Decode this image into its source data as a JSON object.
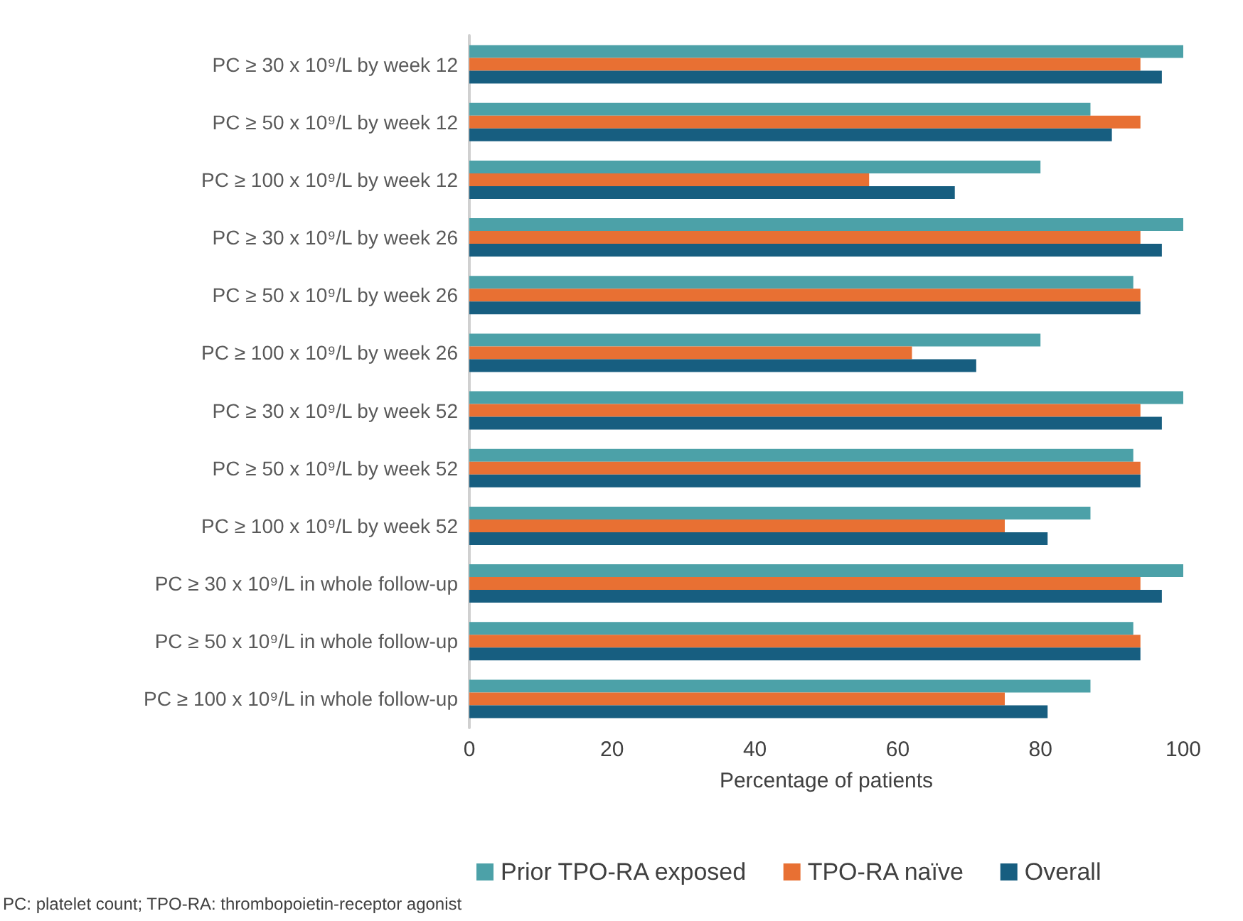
{
  "chart_data": {
    "type": "bar",
    "orientation": "horizontal",
    "xlabel": "Percentage of patients",
    "categories": [
      "PC ≥ 30 x 10⁹/L by week 12",
      "PC ≥ 50 x 10⁹/L by week 12",
      "PC ≥ 100 x 10⁹/L by week 12",
      "PC ≥ 30 x 10⁹/L by week 26",
      "PC ≥ 50 x 10⁹/L by week 26",
      "PC ≥ 100 x 10⁹/L by week 26",
      "PC ≥ 30 x 10⁹/L by week 52",
      "PC ≥ 50 x 10⁹/L by week 52",
      "PC ≥ 100 x 10⁹/L by week 52",
      "PC ≥ 30 x 10⁹/L in whole follow-up",
      "PC ≥ 50 x 10⁹/L in whole follow-up",
      "PC ≥ 100 x 10⁹/L in whole follow-up"
    ],
    "series": [
      {
        "name": "Prior TPO-RA exposed",
        "color": "#4ca1a8",
        "values": [
          100,
          87,
          80,
          100,
          93,
          80,
          100,
          93,
          87,
          100,
          93,
          87
        ]
      },
      {
        "name": "TPO-RA naïve",
        "color": "#e87033",
        "values": [
          94,
          94,
          56,
          94,
          94,
          62,
          94,
          94,
          75,
          94,
          94,
          75
        ]
      },
      {
        "name": "Overall",
        "color": "#175e80",
        "values": [
          97,
          90,
          68,
          97,
          94,
          71,
          97,
          94,
          81,
          97,
          94,
          81
        ]
      }
    ],
    "xlim": [
      0,
      100
    ],
    "xticks": [
      0,
      20,
      40,
      60,
      80,
      100
    ],
    "grid": false,
    "legend": "bottom",
    "annotations": [
      "PC: platelet count; TPO-RA: thrombopoietin-receptor agonist"
    ]
  }
}
